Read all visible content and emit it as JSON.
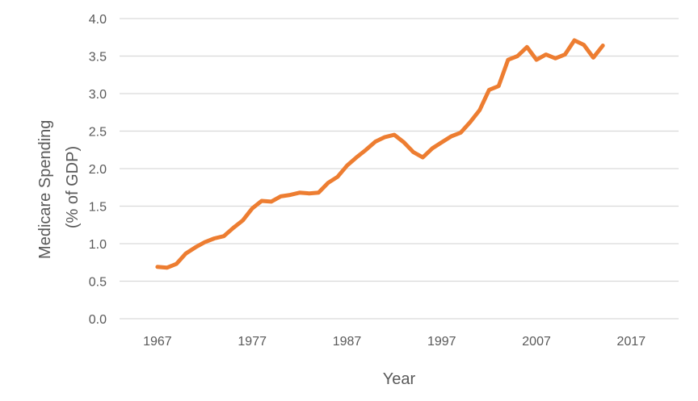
{
  "chart_data": {
    "type": "line",
    "title": "",
    "xlabel": "Year",
    "ylabel_lines": [
      "Medicare Spending",
      "(% of GDP)"
    ],
    "xlim": [
      1963,
      2022
    ],
    "ylim": [
      0,
      4.0
    ],
    "x_ticks": [
      1967,
      1977,
      1987,
      1997,
      2007,
      2017
    ],
    "y_ticks": [
      "0.0",
      "0.5",
      "1.0",
      "1.5",
      "2.0",
      "2.5",
      "3.0",
      "3.5",
      "4.0"
    ],
    "grid": "horizontal",
    "legend": "none",
    "series": [
      {
        "color": "#ed7d31",
        "x": [
          1967,
          1968,
          1969,
          1970,
          1971,
          1972,
          1973,
          1974,
          1975,
          1976,
          1977,
          1978,
          1979,
          1980,
          1981,
          1982,
          1983,
          1984,
          1985,
          1986,
          1987,
          1988,
          1989,
          1990,
          1991,
          1992,
          1993,
          1994,
          1995,
          1996,
          1997,
          1998,
          1999,
          2000,
          2001,
          2002,
          2003,
          2004,
          2005,
          2006,
          2007,
          2008,
          2009,
          2010,
          2011,
          2012,
          2013,
          2014
        ],
        "y": [
          0.69,
          0.68,
          0.73,
          0.87,
          0.95,
          1.02,
          1.07,
          1.1,
          1.21,
          1.31,
          1.47,
          1.57,
          1.56,
          1.63,
          1.65,
          1.68,
          1.67,
          1.68,
          1.81,
          1.89,
          2.04,
          2.15,
          2.25,
          2.36,
          2.42,
          2.45,
          2.35,
          2.22,
          2.15,
          2.27,
          2.35,
          2.43,
          2.48,
          2.62,
          2.78,
          3.05,
          3.1,
          3.45,
          3.5,
          3.62,
          3.45,
          3.52,
          3.47,
          3.52,
          3.71,
          3.65,
          3.48,
          3.64
        ]
      }
    ]
  }
}
